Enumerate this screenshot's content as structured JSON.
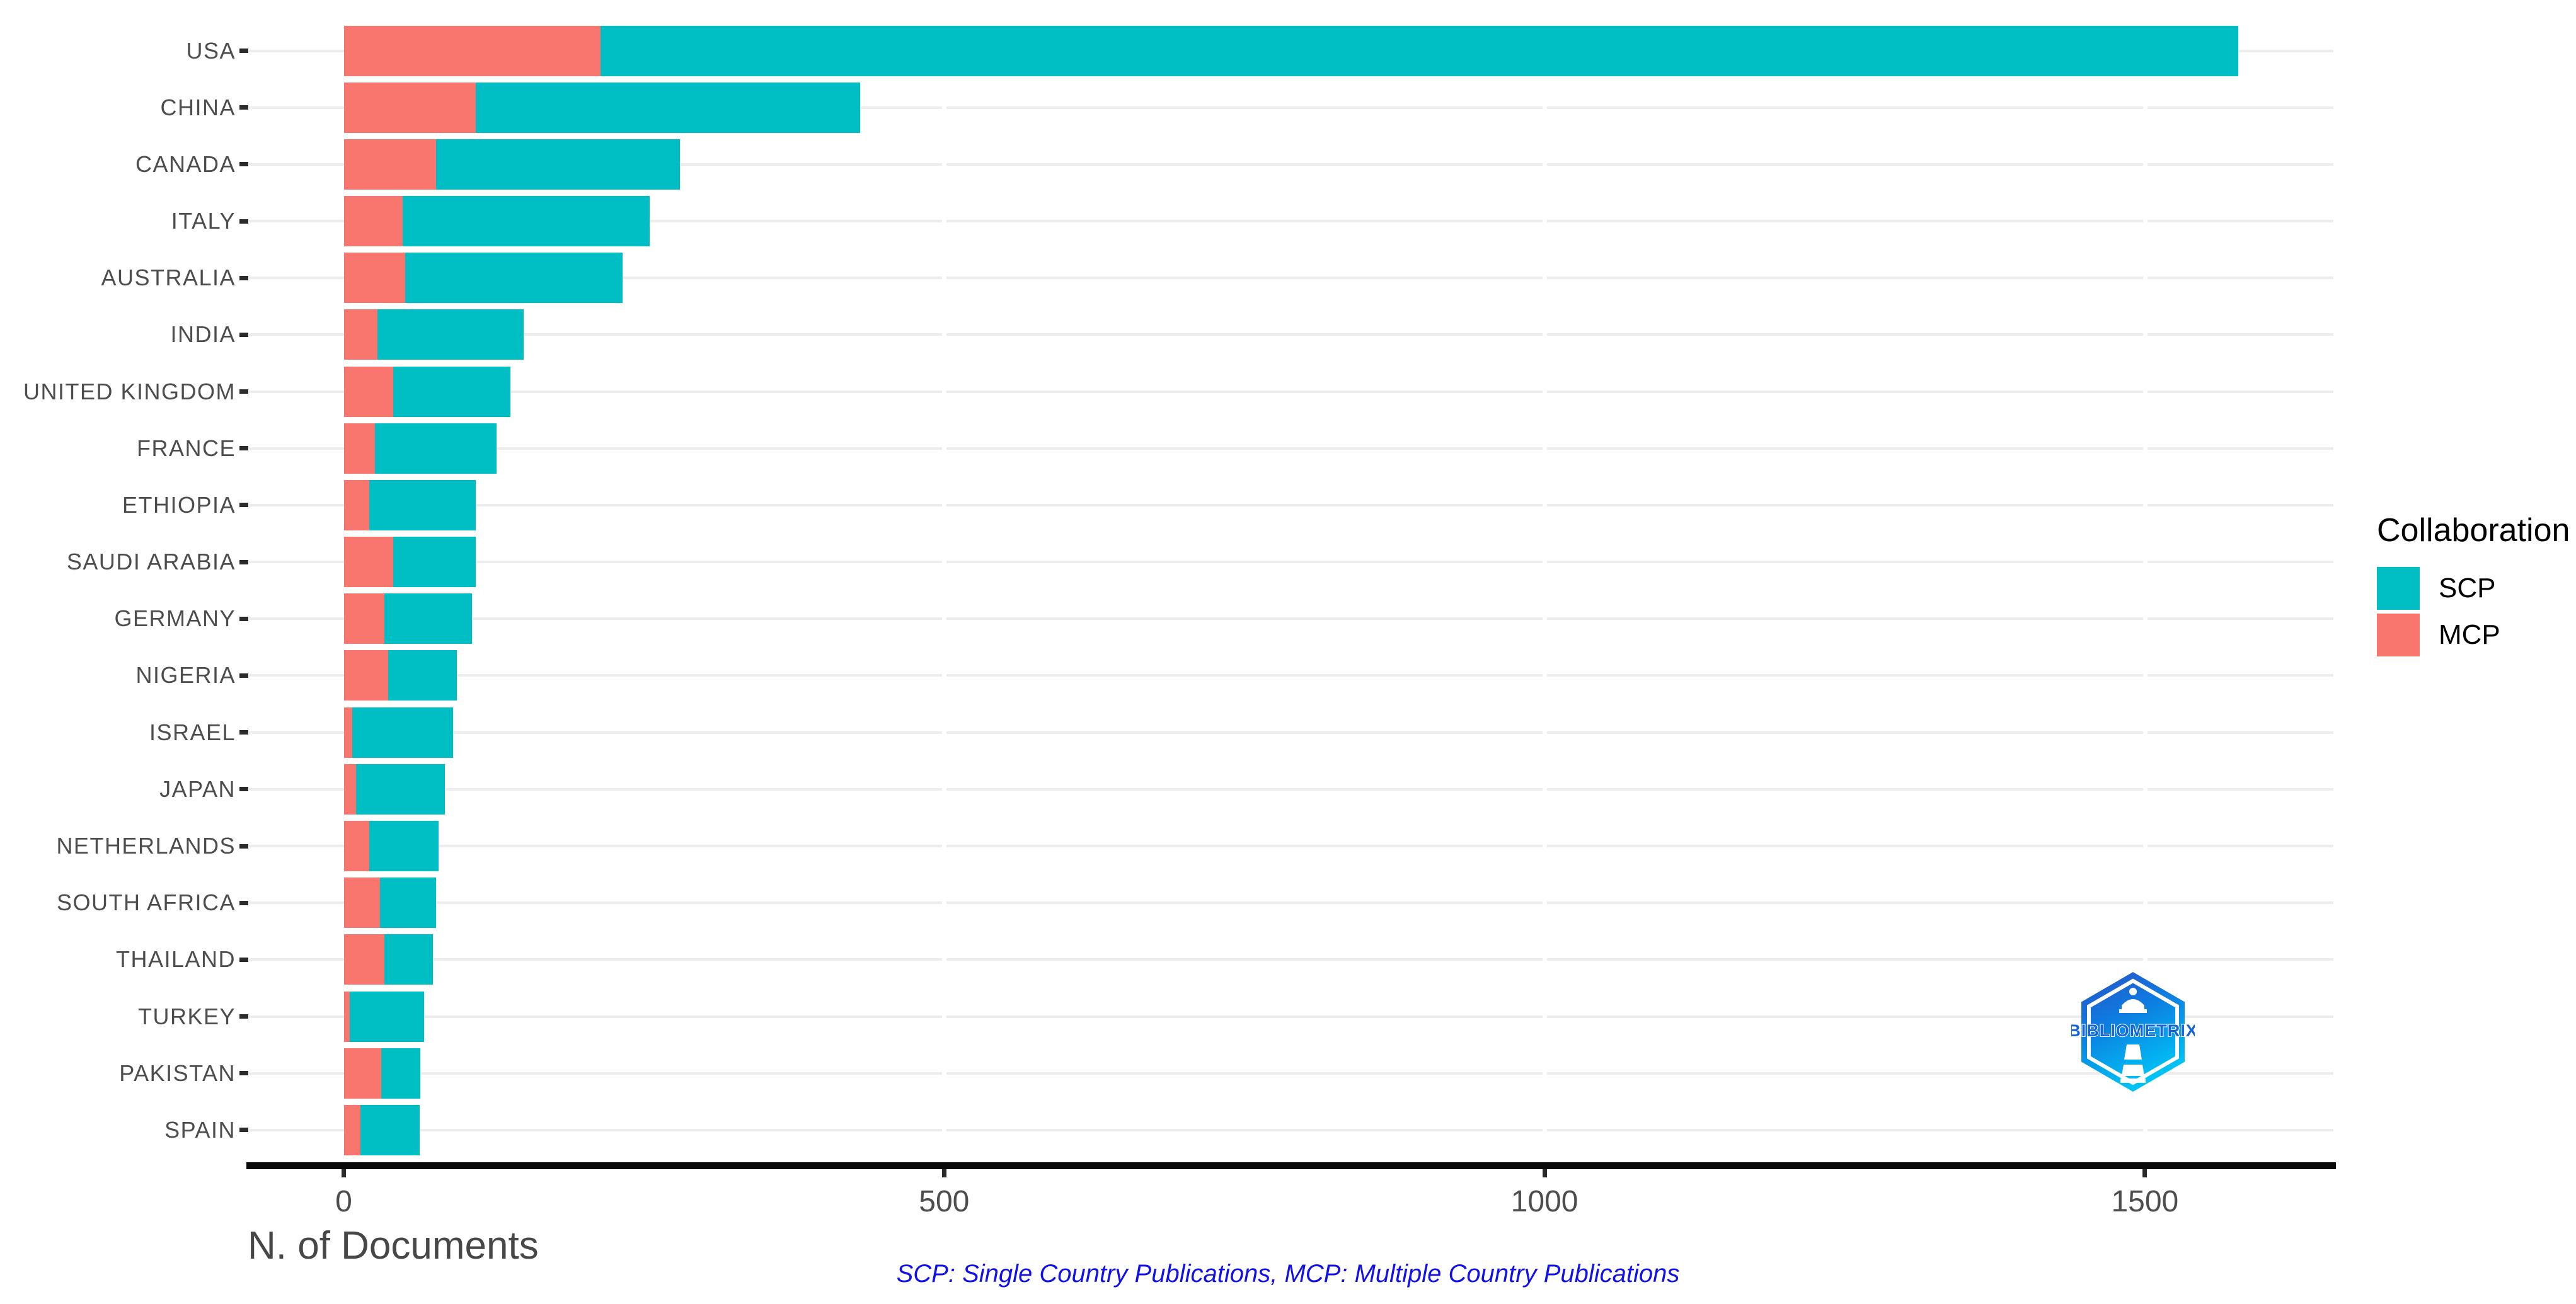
{
  "chart_data": {
    "type": "bar",
    "orientation": "horizontal",
    "stacked": true,
    "title": "",
    "xlabel": "N. of Documents",
    "ylabel": "",
    "categories": [
      "USA",
      "CHINA",
      "CANADA",
      "ITALY",
      "AUSTRALIA",
      "INDIA",
      "UNITED KINGDOM",
      "FRANCE",
      "ETHIOPIA",
      "SAUDI ARABIA",
      "GERMANY",
      "NIGERIA",
      "ISRAEL",
      "JAPAN",
      "NETHERLANDS",
      "SOUTH AFRICA",
      "THAILAND",
      "TURKEY",
      "PAKISTAN",
      "SPAIN"
    ],
    "series": [
      {
        "name": "SCP",
        "color": "#00BFC4",
        "values": [
          1364,
          320,
          203,
          206,
          181,
          122,
          98,
          101,
          89,
          69,
          73,
          57,
          84,
          74,
          58,
          47,
          40,
          62,
          33,
          49
        ]
      },
      {
        "name": "MCP",
        "color": "#F8766D",
        "values": [
          214,
          110,
          77,
          49,
          51,
          28,
          41,
          26,
          21,
          41,
          34,
          37,
          7,
          10,
          21,
          30,
          34,
          5,
          31,
          14
        ]
      }
    ],
    "stack_order": [
      "MCP",
      "SCP"
    ],
    "x_ticks": [
      0,
      500,
      1000,
      1500
    ],
    "x_tick_labels": [
      "0",
      "500",
      "1000",
      "1500"
    ],
    "xlim": [
      -79,
      1657
    ],
    "grid": "horizontal-light-gray, white breaks at major x ticks",
    "legend": {
      "title": "Collaboration",
      "position": "right",
      "entries": [
        {
          "label": "SCP",
          "color": "#00BFC4"
        },
        {
          "label": "MCP",
          "color": "#F8766D"
        }
      ]
    },
    "caption": "SCP: Single Country Publications, MCP: Multiple Country Publications"
  },
  "branding": {
    "logo_text": "BIBLIOMETRIX"
  },
  "colors": {
    "scp_teal": "#00BFC4",
    "mcp_salmon": "#F8766D",
    "gridline_gray": "#EDEDED",
    "axis_black": "#0a0a0a",
    "tick_label_gray": "#4D4D4D",
    "caption_blue": "#1212E8",
    "logo_blue_dark": "#2B50C8",
    "logo_blue_light": "#00C3F5"
  }
}
